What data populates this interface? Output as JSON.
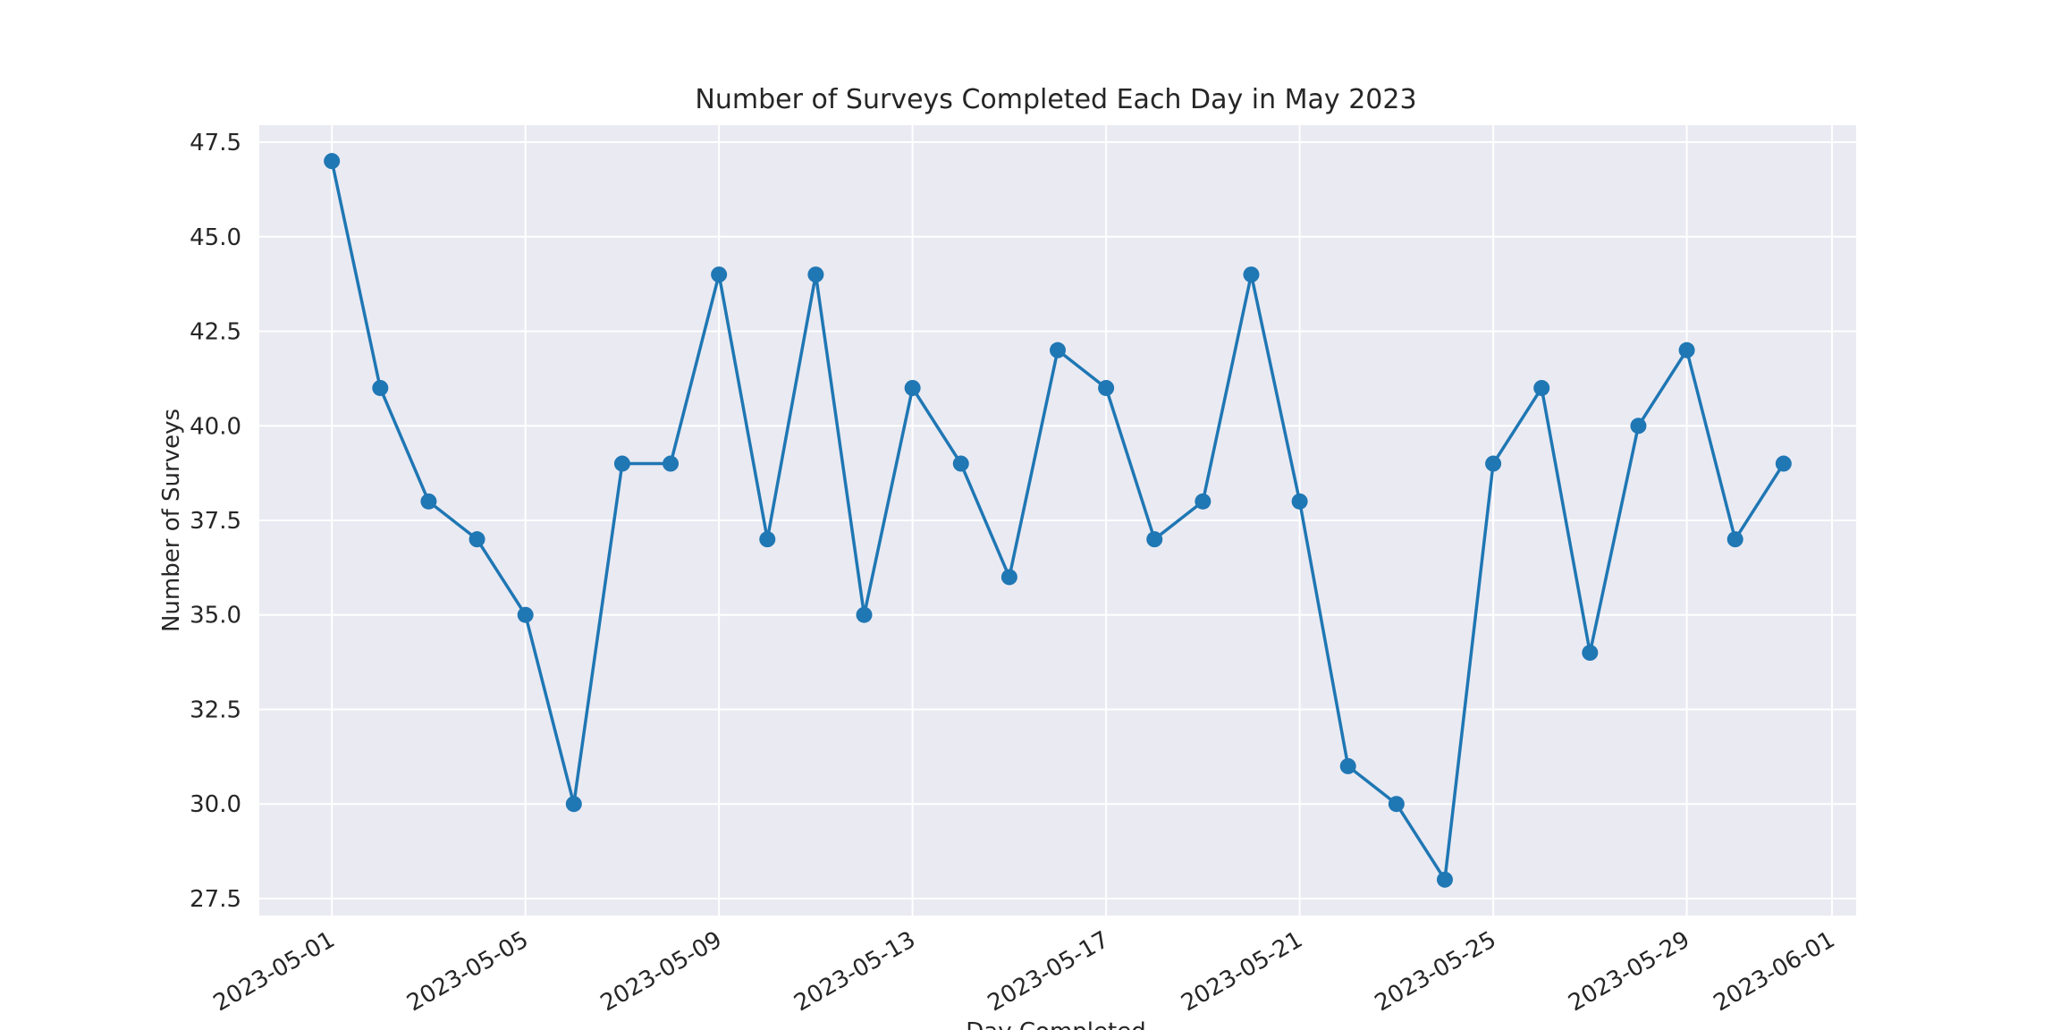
{
  "chart_data": {
    "type": "line",
    "title": "Number of Surveys Completed Each Day in May 2023",
    "xlabel": "Day Completed",
    "ylabel": "Number of Surveys",
    "x": [
      "2023-05-01",
      "2023-05-02",
      "2023-05-03",
      "2023-05-04",
      "2023-05-05",
      "2023-05-06",
      "2023-05-07",
      "2023-05-08",
      "2023-05-09",
      "2023-05-10",
      "2023-05-11",
      "2023-05-12",
      "2023-05-13",
      "2023-05-14",
      "2023-05-15",
      "2023-05-16",
      "2023-05-17",
      "2023-05-18",
      "2023-05-19",
      "2023-05-20",
      "2023-05-21",
      "2023-05-22",
      "2023-05-23",
      "2023-05-24",
      "2023-05-25",
      "2023-05-26",
      "2023-05-27",
      "2023-05-28",
      "2023-05-29",
      "2023-05-30",
      "2023-05-31"
    ],
    "series": [
      {
        "values": [
          47,
          41,
          38,
          37,
          35,
          30,
          39,
          39,
          44,
          37,
          44,
          35,
          41,
          39,
          36,
          42,
          41,
          37,
          38,
          44,
          38,
          31,
          30,
          28,
          39,
          41,
          34,
          40,
          42,
          37,
          39
        ]
      }
    ],
    "xlim": [
      "2023-04-29.5",
      "2023-06-01.5"
    ],
    "ylim": [
      27.05,
      47.95
    ],
    "xticks": [
      "2023-05-01",
      "2023-05-05",
      "2023-05-09",
      "2023-05-13",
      "2023-05-17",
      "2023-05-21",
      "2023-05-25",
      "2023-05-29",
      "2023-06-01"
    ],
    "yticks": [
      "27.5",
      "30.0",
      "32.5",
      "35.0",
      "37.5",
      "40.0",
      "42.5",
      "45.0",
      "47.5"
    ],
    "grid": true,
    "colors": {
      "line": "#1f77b4",
      "plot_background": "#eaeaf2",
      "grid": "#ffffff"
    }
  }
}
